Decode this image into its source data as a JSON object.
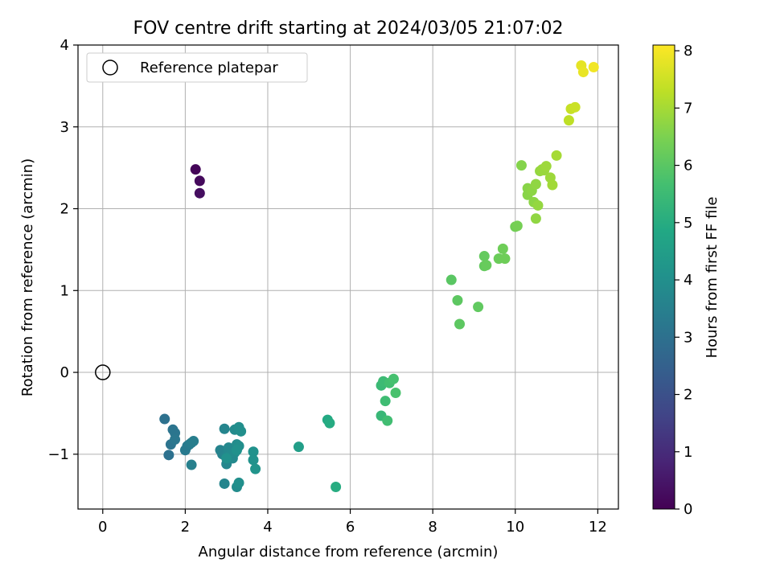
{
  "chart_data": {
    "type": "scatter",
    "title": "FOV centre drift starting at 2024/03/05 21:07:02",
    "xlabel": "Angular distance from reference (arcmin)",
    "ylabel": "Rotation from reference (arcmin)",
    "xlim": [
      -0.6,
      12.5
    ],
    "ylim": [
      -1.67,
      4.0
    ],
    "xticks": [
      0,
      2,
      4,
      6,
      8,
      10,
      12
    ],
    "xtick_labels": [
      "0",
      "2",
      "4",
      "6",
      "8",
      "10",
      "12"
    ],
    "yticks": [
      -1,
      0,
      1,
      2,
      3,
      4
    ],
    "ytick_labels": [
      "−1",
      "0",
      "1",
      "2",
      "3",
      "4"
    ],
    "grid": true,
    "legend": {
      "location": "upper-left",
      "entries": [
        {
          "label": "Reference platepar",
          "marker": "open-circle"
        }
      ]
    },
    "reference_point": {
      "x": 0,
      "y": 0
    },
    "colorbar": {
      "label": "Hours from first FF file",
      "min": 0,
      "max": 8.1,
      "ticks": [
        0,
        1,
        2,
        3,
        4,
        5,
        6,
        7,
        8
      ],
      "tick_labels": [
        "0",
        "1",
        "2",
        "3",
        "4",
        "5",
        "6",
        "7",
        "8"
      ],
      "colormap": "viridis"
    },
    "series": [
      {
        "x": [
          2.25,
          2.35,
          2.35
        ],
        "y": [
          2.48,
          2.34,
          2.19
        ],
        "c": [
          0.1,
          0.2,
          0.3
        ]
      },
      {
        "x": [
          1.5,
          1.6,
          1.65,
          1.7,
          1.75,
          1.75,
          2.0,
          2.05,
          2.1,
          2.15,
          2.2,
          2.15
        ],
        "y": [
          -0.57,
          -1.01,
          -0.88,
          -0.7,
          -0.74,
          -0.82,
          -0.95,
          -0.9,
          -0.88,
          -0.86,
          -0.84,
          -1.13
        ],
        "c": [
          3.0,
          3.0,
          3.1,
          3.1,
          3.15,
          3.2,
          3.3,
          3.3,
          3.35,
          3.4,
          3.45,
          3.5
        ]
      },
      {
        "x": [
          2.85,
          2.9,
          2.95,
          2.95,
          3.0,
          3.0,
          3.05,
          3.05,
          3.1,
          3.15,
          3.2,
          3.2,
          3.25,
          3.25,
          3.3,
          3.3,
          3.35,
          3.3,
          3.25,
          3.0,
          3.65,
          3.65,
          3.7
        ],
        "y": [
          -0.95,
          -1.0,
          -1.36,
          -0.69,
          -1.12,
          -1.02,
          -0.95,
          -0.92,
          -1.0,
          -1.05,
          -0.7,
          -0.98,
          -0.88,
          -1.4,
          -0.67,
          -0.9,
          -0.72,
          -1.35,
          -0.95,
          -1.05,
          -0.97,
          -1.07,
          -1.18
        ],
        "c": [
          3.6,
          3.6,
          3.65,
          3.65,
          3.7,
          3.7,
          3.75,
          3.75,
          3.8,
          3.8,
          3.85,
          3.85,
          3.9,
          3.9,
          3.95,
          3.95,
          4.0,
          4.0,
          4.05,
          4.05,
          4.1,
          4.1,
          4.15
        ]
      },
      {
        "x": [
          4.75,
          5.45,
          5.5,
          5.65
        ],
        "y": [
          -0.91,
          -0.58,
          -0.62,
          -1.4
        ],
        "c": [
          4.5,
          4.9,
          4.95,
          5.0
        ]
      },
      {
        "x": [
          6.75,
          6.75,
          6.8,
          6.85,
          6.9,
          6.95,
          7.05,
          7.1
        ],
        "y": [
          -0.53,
          -0.16,
          -0.11,
          -0.35,
          -0.59,
          -0.13,
          -0.08,
          -0.25
        ],
        "c": [
          5.4,
          5.45,
          5.5,
          5.55,
          5.6,
          5.65,
          5.7,
          5.75
        ]
      },
      {
        "x": [
          8.45,
          8.6,
          8.65,
          9.1,
          9.25,
          9.25,
          9.3,
          9.6,
          9.7,
          9.75,
          10.0,
          10.05
        ],
        "y": [
          1.13,
          0.88,
          0.59,
          0.8,
          1.42,
          1.3,
          1.31,
          1.39,
          1.51,
          1.39,
          1.78,
          1.79
        ],
        "c": [
          6.0,
          6.05,
          6.05,
          6.1,
          6.15,
          6.15,
          6.2,
          6.25,
          6.3,
          6.3,
          6.35,
          6.4
        ]
      },
      {
        "x": [
          10.15,
          10.3,
          10.3,
          10.4,
          10.45,
          10.5,
          10.5,
          10.55,
          10.6,
          10.65,
          10.7,
          10.75,
          10.85,
          10.9,
          11.0
        ],
        "y": [
          2.53,
          2.25,
          2.17,
          2.22,
          2.08,
          2.3,
          1.88,
          2.04,
          2.46,
          2.48,
          2.47,
          2.52,
          2.38,
          2.29,
          2.65
        ],
        "c": [
          6.6,
          6.65,
          6.65,
          6.7,
          6.7,
          6.75,
          6.75,
          6.8,
          6.8,
          6.85,
          6.85,
          6.9,
          6.9,
          6.95,
          7.0
        ]
      },
      {
        "x": [
          11.3,
          11.35,
          11.45,
          11.6,
          11.65,
          11.9
        ],
        "y": [
          3.08,
          3.22,
          3.24,
          3.75,
          3.67,
          3.73
        ],
        "c": [
          7.3,
          7.4,
          7.45,
          7.8,
          7.85,
          7.95
        ]
      }
    ]
  }
}
